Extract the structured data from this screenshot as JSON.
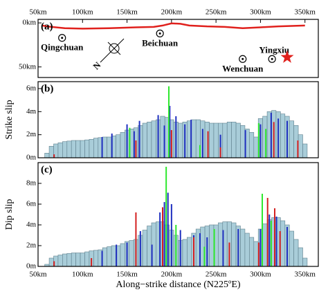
{
  "chart_data": [
    {
      "type": "map",
      "label": "(a)",
      "xlim": [
        50,
        365
      ],
      "ylim": [
        -4,
        62
      ],
      "xticks": [
        {
          "value": 50,
          "label": "50km"
        },
        {
          "value": 100,
          "label": "100km"
        },
        {
          "value": 150,
          "label": "150km"
        },
        {
          "value": 200,
          "label": "200km"
        },
        {
          "value": 250,
          "label": "250km"
        },
        {
          "value": 300,
          "label": "300km"
        },
        {
          "value": 350,
          "label": "350km"
        }
      ],
      "yticks": [
        {
          "value": 0,
          "label": "0km"
        },
        {
          "value": 50,
          "label": "50km"
        }
      ],
      "fault": {
        "color": "#e0201c",
        "x": [
          55,
          60,
          80,
          100,
          130,
          160,
          180,
          190,
          200,
          210,
          220,
          240,
          260,
          280,
          300,
          320,
          350
        ],
        "y": [
          3,
          4,
          6,
          6.5,
          6,
          5,
          4.5,
          3,
          0.5,
          1,
          3,
          4,
          4.5,
          6,
          5,
          4,
          3
        ]
      },
      "sites": [
        {
          "name": "Qingchuan",
          "x": 77,
          "y": 17
        },
        {
          "name": "Beichuan",
          "x": 187,
          "y": 12
        },
        {
          "name": "Wenchuan",
          "x": 280,
          "y": 41
        },
        {
          "name": "Yingxiu",
          "x": 313,
          "y": 41
        }
      ],
      "epicenter": {
        "x": 330,
        "y": 39,
        "color": "#e0201c"
      },
      "north": "N"
    },
    {
      "type": "bar",
      "label": "(b)",
      "ylabel": "Strike slip",
      "xlim": [
        50,
        365
      ],
      "ylim": [
        0,
        6.6
      ],
      "yticks": [
        {
          "value": 0,
          "label": "0m"
        },
        {
          "value": 2,
          "label": "2m"
        },
        {
          "value": 4,
          "label": "4m"
        },
        {
          "value": 6,
          "label": "6m"
        }
      ],
      "color": "#a9cdd9",
      "x": [
        60,
        65,
        70,
        75,
        80,
        85,
        90,
        95,
        100,
        105,
        110,
        115,
        120,
        125,
        130,
        135,
        140,
        145,
        150,
        155,
        160,
        165,
        170,
        175,
        180,
        185,
        190,
        195,
        200,
        205,
        210,
        215,
        220,
        225,
        230,
        235,
        240,
        245,
        250,
        255,
        260,
        265,
        270,
        275,
        280,
        285,
        290,
        295,
        300,
        305,
        310,
        315,
        320,
        325,
        330,
        335,
        340,
        345,
        350
      ],
      "values": [
        0.4,
        1.0,
        1.2,
        1.3,
        1.4,
        1.45,
        1.5,
        1.5,
        1.5,
        1.55,
        1.6,
        1.7,
        1.75,
        1.8,
        1.8,
        1.9,
        2.0,
        2.2,
        2.4,
        2.5,
        2.6,
        2.8,
        3.0,
        3.1,
        3.2,
        3.3,
        3.6,
        3.5,
        3.3,
        3.1,
        3.0,
        3.1,
        3.2,
        3.3,
        3.3,
        3.2,
        3.1,
        3.0,
        3.0,
        3.0,
        3.0,
        3.1,
        3.1,
        3.0,
        2.8,
        2.5,
        2.2,
        1.8,
        3.4,
        3.6,
        4.0,
        4.1,
        4.0,
        3.8,
        3.6,
        3.2,
        2.8,
        2.0,
        1.2
      ],
      "spikes": [
        {
          "color": "#1f2fbf",
          "x": [
            122,
            133,
            150,
            158,
            164,
            185,
            192,
            198,
            205,
            215,
            222,
            235,
            255,
            283,
            300,
            312,
            320,
            330
          ],
          "values": [
            1.8,
            2.1,
            2.9,
            2.3,
            3.2,
            3.7,
            2.8,
            4.5,
            3.6,
            2.9,
            3.3,
            2.5,
            2.0,
            2.4,
            2.9,
            3.9,
            3.4,
            3.2
          ]
        },
        {
          "color": "#2ee82e",
          "x": [
            153,
            197,
            232,
            298,
            306
          ],
          "values": [
            2.6,
            6.2,
            1.1,
            3.0,
            2.5
          ]
        },
        {
          "color": "#d42020",
          "x": [
            68,
            160,
            200,
            241,
            255,
            315,
            342
          ],
          "values": [
            0.3,
            1.5,
            2.4,
            2.3,
            0.9,
            3.1,
            1.5
          ]
        }
      ]
    },
    {
      "type": "bar",
      "label": "(c)",
      "ylabel": "Dip slip",
      "xlabel": "Along−strike distance (N225ºE)",
      "xlim": [
        50,
        365
      ],
      "ylim": [
        0,
        10
      ],
      "xticks": [
        {
          "value": 50,
          "label": "50km"
        },
        {
          "value": 100,
          "label": "100km"
        },
        {
          "value": 150,
          "label": "150km"
        },
        {
          "value": 200,
          "label": "200km"
        },
        {
          "value": 250,
          "label": "250km"
        },
        {
          "value": 300,
          "label": "300km"
        },
        {
          "value": 350,
          "label": "350km"
        }
      ],
      "yticks": [
        {
          "value": 0,
          "label": "0m"
        },
        {
          "value": 2,
          "label": "2m"
        },
        {
          "value": 4,
          "label": "4m"
        },
        {
          "value": 6,
          "label": "6m"
        },
        {
          "value": 8,
          "label": "8m"
        }
      ],
      "color": "#a9cdd9",
      "x": [
        60,
        65,
        70,
        75,
        80,
        85,
        90,
        95,
        100,
        105,
        110,
        115,
        120,
        125,
        130,
        135,
        140,
        145,
        150,
        155,
        160,
        165,
        170,
        175,
        180,
        185,
        190,
        195,
        200,
        205,
        210,
        215,
        220,
        225,
        230,
        235,
        240,
        245,
        250,
        255,
        260,
        265,
        270,
        275,
        280,
        285,
        290,
        295,
        300,
        305,
        310,
        315,
        320,
        325,
        330,
        335,
        340,
        345,
        350
      ],
      "values": [
        0.2,
        0.8,
        1.0,
        1.1,
        1.2,
        1.25,
        1.3,
        1.3,
        1.3,
        1.4,
        1.5,
        1.55,
        1.6,
        1.8,
        1.9,
        2.0,
        2.0,
        2.2,
        2.4,
        2.5,
        2.6,
        3.0,
        3.5,
        3.9,
        4.2,
        4.3,
        4.3,
        4.0,
        3.5,
        3.0,
        2.5,
        2.6,
        2.8,
        3.2,
        3.6,
        3.8,
        3.9,
        4.0,
        4.0,
        4.2,
        4.3,
        4.3,
        4.2,
        3.9,
        3.6,
        3.2,
        2.8,
        2.4,
        3.6,
        4.1,
        4.5,
        4.7,
        4.7,
        4.4,
        4.0,
        3.4,
        2.6,
        1.8,
        0.8
      ],
      "spikes": [
        {
          "color": "#1f2fbf",
          "x": [
            122,
            138,
            150,
            165,
            178,
            187,
            192,
            196,
            200,
            210,
            225,
            232,
            240,
            258,
            275,
            300,
            310,
            318,
            330
          ],
          "values": [
            1.5,
            2.1,
            2.3,
            3.4,
            2.1,
            5.2,
            6.2,
            7.1,
            6.0,
            3.5,
            3.0,
            3.2,
            2.8,
            3.5,
            3.6,
            3.6,
            5.0,
            4.8,
            3.8
          ]
        },
        {
          "color": "#2ee82e",
          "x": [
            194,
            205,
            237,
            248,
            302,
            312
          ],
          "values": [
            9.6,
            4.0,
            1.9,
            3.6,
            7.0,
            4.4
          ]
        },
        {
          "color": "#d42020",
          "x": [
            68,
            110,
            160,
            190,
            225,
            265,
            298,
            308,
            316,
            322
          ],
          "values": [
            0.5,
            0.8,
            5.2,
            5.7,
            2.8,
            2.3,
            2.3,
            6.6,
            5.6,
            3.4
          ]
        }
      ]
    }
  ]
}
